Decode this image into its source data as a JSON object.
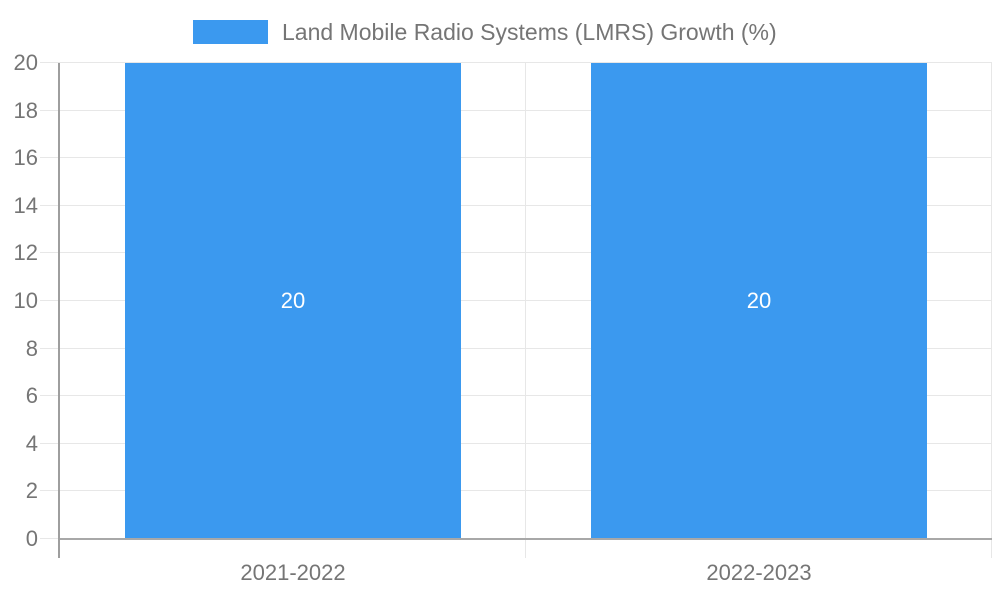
{
  "chart_data": {
    "type": "bar",
    "title": "Land Mobile Radio Systems (LMRS) Growth (%)",
    "legend": "Land Mobile Radio Systems (LMRS) Growth (%)",
    "legend_position": "top",
    "categories": [
      "2021-2022",
      "2022-2023"
    ],
    "series": [
      {
        "name": "Land Mobile Radio Systems (LMRS) Growth (%)",
        "values": [
          20,
          20
        ]
      }
    ],
    "bar_value_labels": [
      "20",
      "20"
    ],
    "xlabel": "",
    "ylabel": "",
    "ylim": [
      0,
      20
    ],
    "ytick_step": 2,
    "ytick_labels": [
      "0",
      "2",
      "4",
      "6",
      "8",
      "10",
      "12",
      "14",
      "16",
      "18",
      "20"
    ],
    "grid": true,
    "colors": {
      "bar": "#3B99EF",
      "bar_value_text": "#FFFFFF",
      "axis_text": "#757575",
      "legend_text": "#757575",
      "gridline": "#E7E7E7",
      "category_boundary": "#E7E7E7",
      "axis_line": "#9E9E9E",
      "baseline": "#A8A8A8",
      "background": "#FFFFFF"
    }
  }
}
